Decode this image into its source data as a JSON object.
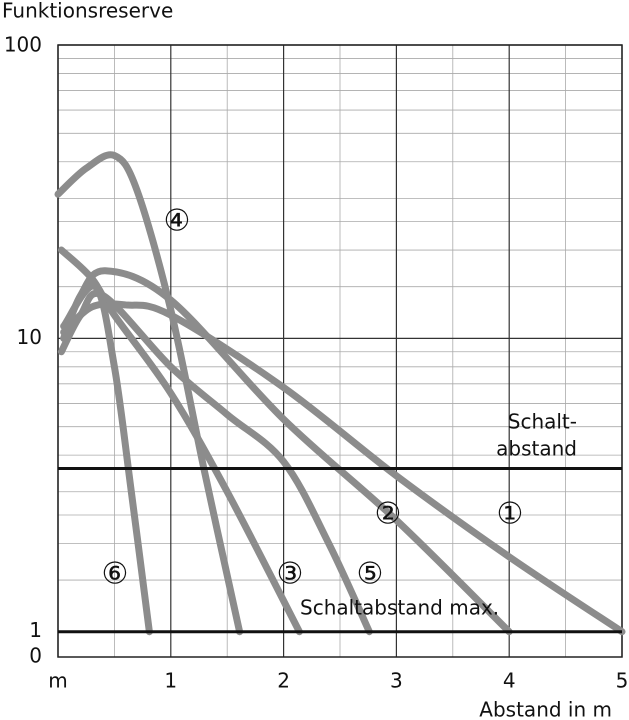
{
  "chart_data": {
    "type": "line",
    "y_label": "Funktionsreserve",
    "x_label": "Abstand in m",
    "y_origin_label": "0",
    "log_y": true,
    "grid": true,
    "color": "#8c8c8c",
    "xlim": [
      0,
      5
    ],
    "xticks": [
      {
        "value": 0,
        "label": "m"
      },
      1,
      2,
      3,
      4,
      5
    ],
    "x_minor_grid": [
      0.5,
      1.5,
      2.5,
      3.5,
      4.5
    ],
    "ylim": [
      0.82,
      100
    ],
    "yticks": [
      1,
      10,
      100
    ],
    "y_minor_grid": [
      1.5,
      2,
      2.5,
      3,
      4,
      5,
      6,
      7,
      8,
      9,
      15,
      20,
      25,
      30,
      40,
      50,
      60,
      70,
      80,
      90
    ],
    "reference_lines": [
      {
        "value": 3.6,
        "label_lines": [
          "Schalt-",
          "abstand"
        ]
      },
      {
        "value": 1,
        "label_lines": [
          "Schaltabstand max."
        ]
      }
    ],
    "series": [
      {
        "name": "①",
        "x": [
          0.05,
          0.3,
          0.6,
          1,
          2,
          3,
          4,
          5
        ],
        "values": [
          10.5,
          12.8,
          13,
          12,
          6.8,
          3.4,
          1.8,
          1
        ]
      },
      {
        "name": "②",
        "x": [
          0.05,
          0.2,
          0.42,
          1,
          2,
          3,
          4
        ],
        "values": [
          10,
          14,
          17,
          13.5,
          5.3,
          2.4,
          1
        ]
      },
      {
        "name": "③",
        "x": [
          0.03,
          0.3,
          0.5,
          1,
          1.5,
          2.14
        ],
        "values": [
          20,
          16,
          12,
          6.5,
          3,
          1
        ]
      },
      {
        "name": "④",
        "x": [
          0,
          0.25,
          0.5,
          0.7,
          1,
          1.3,
          1.61
        ],
        "values": [
          31,
          38,
          42,
          32,
          12.5,
          3.5,
          1
        ]
      },
      {
        "name": "⑤",
        "x": [
          0.03,
          0.2,
          0.4,
          1,
          1.5,
          2,
          2.4,
          2.76
        ],
        "values": [
          9,
          12,
          14,
          8,
          5.5,
          3.8,
          2,
          1
        ]
      },
      {
        "name": "⑥",
        "x": [
          0.05,
          0.33,
          0.5,
          0.65,
          0.81
        ],
        "values": [
          11,
          15,
          8,
          3,
          1
        ]
      }
    ]
  }
}
